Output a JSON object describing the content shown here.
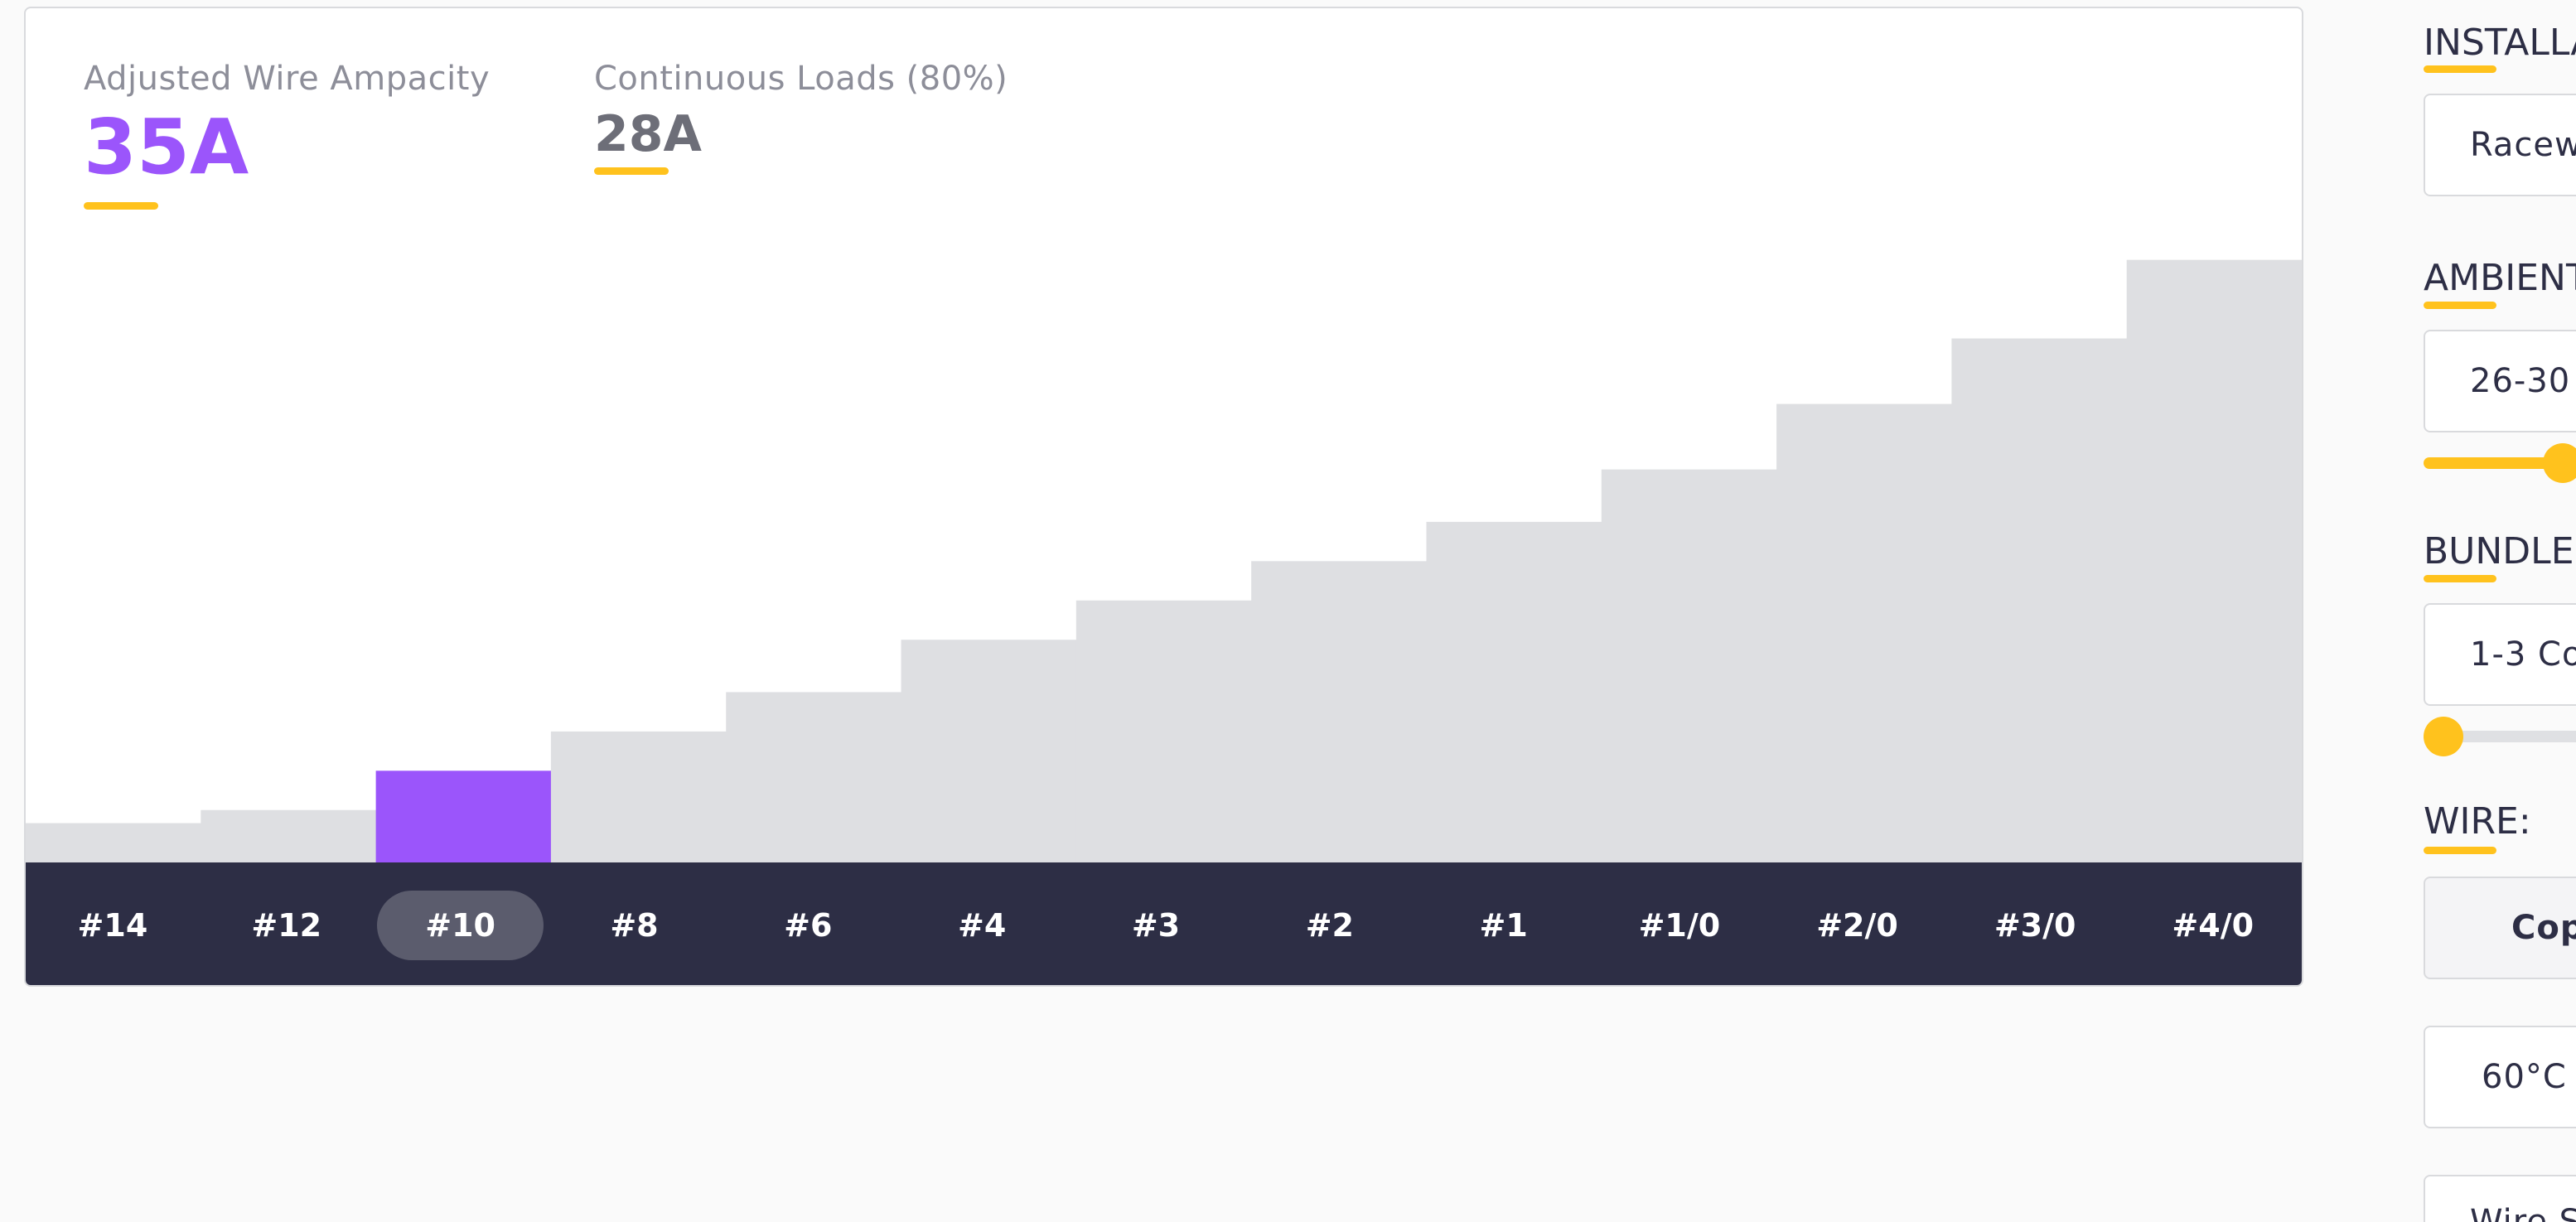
{
  "stats": {
    "adjusted_label": "Adjusted Wire Ampacity",
    "adjusted_value": "35A",
    "continuous_label": "Continuous Loads (80%)",
    "continuous_value": "28A"
  },
  "colors": {
    "accent": "#9b55fb",
    "underline": "#ffc21d",
    "bar": "#dedfe2",
    "nav_bg": "#2d2e45",
    "nav_selected": "#5b5c6d"
  },
  "chart_data": {
    "type": "bar",
    "categories": [
      "#14",
      "#12",
      "#10",
      "#8",
      "#6",
      "#4",
      "#3",
      "#2",
      "#1",
      "#1/0",
      "#2/0",
      "#3/0",
      "#4/0"
    ],
    "values": [
      15,
      20,
      35,
      50,
      65,
      85,
      100,
      115,
      130,
      150,
      175,
      200,
      230
    ],
    "highlighted_category": "#10",
    "ylim": [
      0,
      234
    ]
  },
  "wire_sizes": {
    "items": [
      "#14",
      "#12",
      "#10",
      "#8",
      "#6",
      "#4",
      "#3",
      "#2",
      "#1",
      "#1/0",
      "#2/0",
      "#3/0",
      "#4/0"
    ],
    "selected": "#10"
  },
  "panel": {
    "installation_title": "INSTALLA",
    "installation_value": "Racew",
    "ambient_title": "AMBIENT",
    "ambient_value": "26-30",
    "ambient_slider": 1.0,
    "bundle_title": "BUNDLE S",
    "bundle_value": "1-3 Co",
    "bundle_slider": 0.0,
    "wire_title": "WIRE:",
    "wire_material": "Cop",
    "wire_temp": "60°C",
    "wire_size_label": "Wire S"
  }
}
